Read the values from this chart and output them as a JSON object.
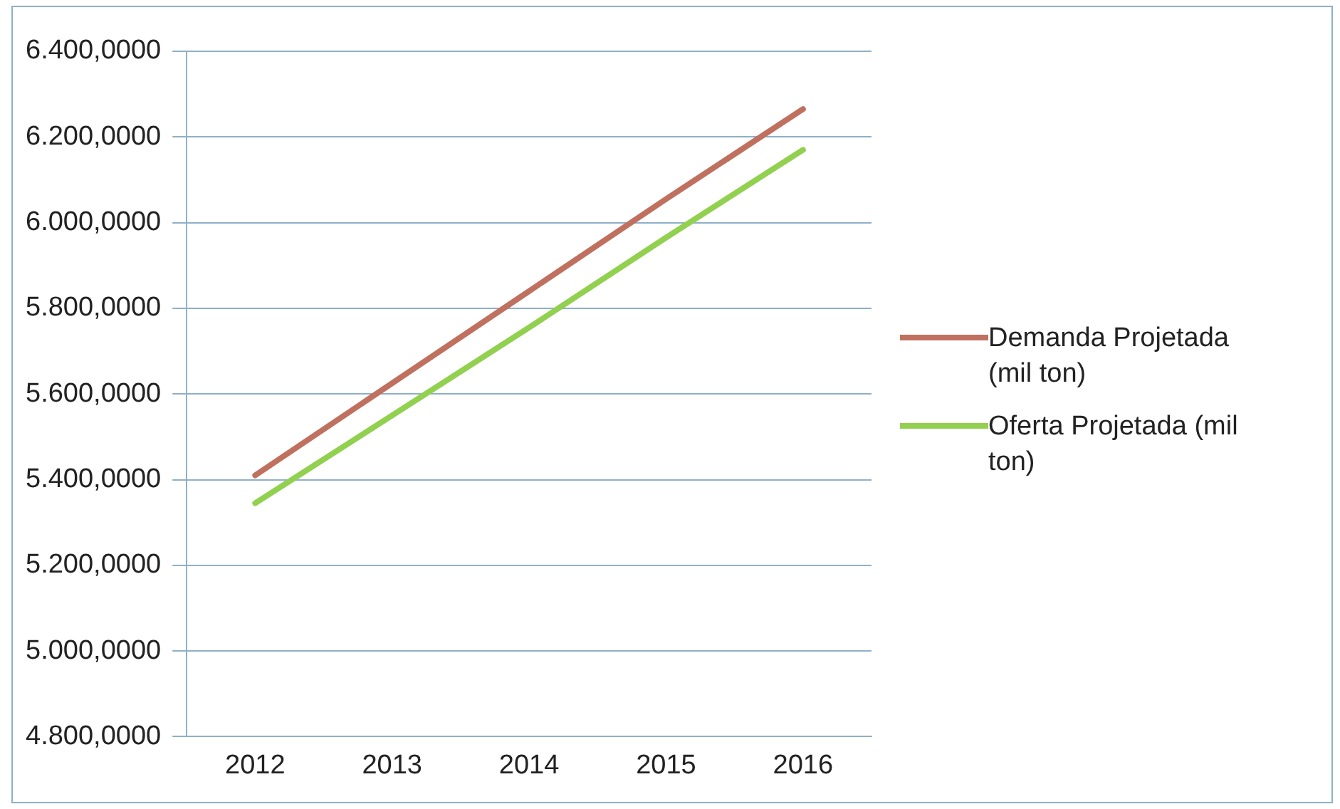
{
  "chart_data": {
    "type": "line",
    "categories": [
      "2012",
      "2013",
      "2014",
      "2015",
      "2016"
    ],
    "series": [
      {
        "name": "Demanda Projetada (mil ton)",
        "color": "#c0705e",
        "values": [
          5410,
          5625,
          5840,
          6055,
          6265
        ]
      },
      {
        "name": "Oferta Projetada (mil ton)",
        "color": "#92d050",
        "values": [
          5345,
          5550,
          5755,
          5965,
          6170
        ]
      }
    ],
    "ylim": [
      4800,
      6400
    ],
    "yticks": [
      {
        "value": 4800,
        "label": "4.800,0000"
      },
      {
        "value": 5000,
        "label": "5.000,0000"
      },
      {
        "value": 5200,
        "label": "5.200,0000"
      },
      {
        "value": 5400,
        "label": "5.400,0000"
      },
      {
        "value": 5600,
        "label": "5.600,0000"
      },
      {
        "value": 5800,
        "label": "5.800,0000"
      },
      {
        "value": 6000,
        "label": "6.000,0000"
      },
      {
        "value": 6200,
        "label": "6.200,0000"
      },
      {
        "value": 6400,
        "label": "6.400,0000"
      }
    ],
    "grid": "y",
    "legend": "right",
    "marker": "none",
    "line_style": "solid"
  }
}
